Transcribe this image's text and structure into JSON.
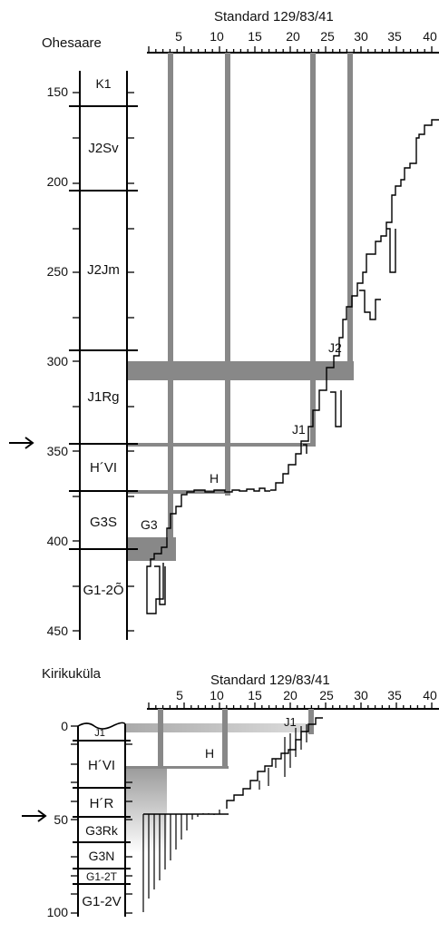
{
  "panels": [
    {
      "site": "Ohesaare",
      "standard_title": "Standard 129/83/41",
      "x_ticks": [
        "5",
        "10",
        "15",
        "20",
        "25",
        "30",
        "35",
        "40"
      ],
      "depth_ticks": [
        "150",
        "200",
        "250",
        "300",
        "350",
        "400",
        "450"
      ],
      "units": [
        "K1",
        "J2Sv",
        "J2Jm",
        "J1Rg",
        "H´VI",
        "G3S",
        "G1-2Õ"
      ],
      "markers": [
        "J2",
        "J1",
        "H",
        "G3"
      ]
    },
    {
      "site": "Kirikuküla",
      "standard_title": "Standard 129/83/41",
      "x_ticks": [
        "5",
        "10",
        "15",
        "20",
        "25",
        "30",
        "35",
        "40"
      ],
      "depth_ticks": [
        "0",
        "50",
        "100"
      ],
      "units": [
        "J1",
        "H´VI",
        "H´R",
        "G3Rk",
        "G3N",
        "G1-2T",
        "G1-2V"
      ],
      "markers": [
        "J1",
        "H"
      ]
    }
  ],
  "colors": {
    "band": "#888888",
    "line": "#000000"
  },
  "icons": [
    "arrow-right-icon",
    "arrow-right-icon"
  ]
}
